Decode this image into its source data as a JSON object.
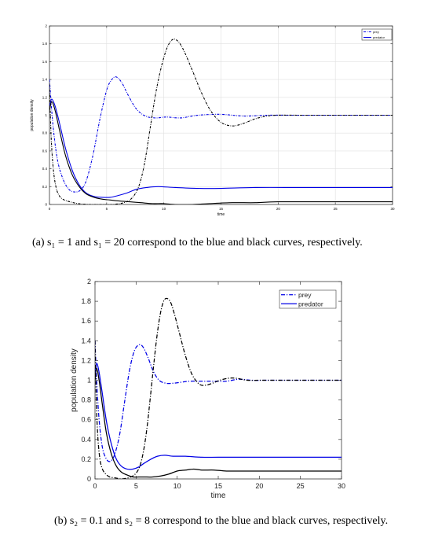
{
  "figures": {
    "a": {
      "caption": "(a) s₁ = 1 and s₁ = 20 correspond to the blue and black curves, respectively."
    },
    "b": {
      "caption": "(b) s₂ = 0.1 and s₂ = 8 correspond to the blue and black curves, respectively."
    }
  },
  "colors": {
    "blue": "#0000e6",
    "black": "#000000",
    "grid": "#e0e0e0",
    "axes": "#3a3a3a"
  },
  "chart_data": [
    {
      "type": "line",
      "xlabel": "time",
      "ylabel": "population density",
      "xlim": [
        0,
        30
      ],
      "ylim": [
        0,
        2
      ],
      "xticks": [
        "0",
        "5",
        "10",
        "15",
        "20",
        "25",
        "30"
      ],
      "yticks": [
        "0",
        "0.2",
        "0.4",
        "0.6",
        "0.8",
        "1",
        "1.2",
        "1.4",
        "1.6",
        "1.8",
        "2"
      ],
      "grid": true,
      "legend_position": "top-right",
      "legend": [
        "prey",
        "predator"
      ],
      "series": [
        {
          "name": "prey",
          "style": "dashdot",
          "color": "#0000e6",
          "x": [
            0,
            0.3,
            0.7,
            1.2,
            1.7,
            2.2,
            2.7,
            3.2,
            3.8,
            4.4,
            5.0,
            5.4,
            5.8,
            6.3,
            6.9,
            7.6,
            8.4,
            9.3,
            10.2,
            11.5,
            13,
            15,
            17,
            19,
            21,
            24,
            27,
            30
          ],
          "y": [
            1.4,
            0.9,
            0.5,
            0.28,
            0.17,
            0.14,
            0.16,
            0.26,
            0.55,
            0.95,
            1.28,
            1.39,
            1.43,
            1.37,
            1.22,
            1.07,
            0.99,
            0.97,
            0.98,
            0.97,
            1.0,
            1.01,
            0.99,
            1.0,
            1.0,
            1.0,
            1.0,
            1.0
          ]
        },
        {
          "name": "predator",
          "style": "solid",
          "color": "#0000e6",
          "x": [
            0,
            0.2,
            0.5,
            0.9,
            1.4,
            2.0,
            2.6,
            3.2,
            3.9,
            4.6,
            5.3,
            6.0,
            6.8,
            7.6,
            8.5,
            9.5,
            11,
            13,
            15,
            18,
            22,
            26,
            30
          ],
          "y": [
            1.1,
            1.18,
            1.1,
            0.9,
            0.63,
            0.38,
            0.22,
            0.13,
            0.09,
            0.08,
            0.08,
            0.1,
            0.13,
            0.17,
            0.19,
            0.2,
            0.19,
            0.18,
            0.18,
            0.19,
            0.19,
            0.19,
            0.19
          ]
        },
        {
          "name": "prey",
          "style": "dashdot",
          "color": "#000000",
          "x": [
            0,
            0.15,
            0.35,
            0.6,
            0.9,
            1.3,
            1.8,
            2.5,
            3.5,
            4.5,
            5.5,
            6.5,
            7.2,
            7.8,
            8.3,
            8.8,
            9.3,
            9.8,
            10.3,
            10.8,
            11.3,
            11.8,
            12.5,
            13.3,
            14.1,
            15,
            16,
            17,
            18,
            19,
            20,
            22,
            25,
            30
          ],
          "y": [
            1.35,
            0.75,
            0.38,
            0.18,
            0.09,
            0.05,
            0.03,
            0.01,
            0.0,
            0.0,
            0.0,
            0.02,
            0.07,
            0.2,
            0.45,
            0.85,
            1.25,
            1.55,
            1.76,
            1.85,
            1.82,
            1.71,
            1.5,
            1.25,
            1.05,
            0.92,
            0.88,
            0.91,
            0.96,
            0.99,
            1.0,
            1.0,
            1.0,
            1.0
          ]
        },
        {
          "name": "predator",
          "style": "solid",
          "color": "#000000",
          "x": [
            0,
            0.2,
            0.5,
            0.9,
            1.4,
            2.0,
            2.6,
            3.2,
            3.9,
            4.6,
            5.3,
            6.0,
            7,
            8,
            9,
            10,
            11,
            12.5,
            14,
            16,
            18,
            20,
            25,
            30
          ],
          "y": [
            1.05,
            1.15,
            1.05,
            0.82,
            0.55,
            0.33,
            0.2,
            0.12,
            0.08,
            0.06,
            0.05,
            0.04,
            0.03,
            0.02,
            0.01,
            0.01,
            0.0,
            0.0,
            0.01,
            0.02,
            0.02,
            0.03,
            0.03,
            0.03
          ]
        }
      ]
    },
    {
      "type": "line",
      "xlabel": "time",
      "ylabel": "population density",
      "xlim": [
        0,
        30
      ],
      "ylim": [
        0,
        2
      ],
      "xticks": [
        "0",
        "5",
        "10",
        "15",
        "20",
        "25",
        "30"
      ],
      "yticks": [
        "0",
        "0.2",
        "0.4",
        "0.6",
        "0.8",
        "1",
        "1.2",
        "1.4",
        "1.6",
        "1.8",
        "2"
      ],
      "grid": false,
      "legend_position": "top-right",
      "legend": [
        "prey",
        "predator"
      ],
      "series": [
        {
          "name": "prey",
          "style": "dashdot",
          "color": "#0000e6",
          "x": [
            0,
            0.2,
            0.5,
            0.9,
            1.4,
            1.9,
            2.4,
            3.0,
            3.6,
            4.2,
            4.8,
            5.4,
            5.9,
            6.5,
            7.1,
            7.8,
            8.6,
            9.5,
            10.5,
            11.5,
            13,
            14.5,
            16,
            17.5,
            19,
            21,
            24,
            27,
            30
          ],
          "y": [
            1.4,
            1.0,
            0.6,
            0.32,
            0.2,
            0.18,
            0.25,
            0.45,
            0.78,
            1.1,
            1.3,
            1.36,
            1.33,
            1.22,
            1.09,
            1.0,
            0.97,
            0.97,
            0.98,
            0.99,
            0.99,
            0.99,
            0.99,
            1.01,
            1.0,
            1.0,
            1.0,
            1.0,
            1.0
          ]
        },
        {
          "name": "predator",
          "style": "solid",
          "color": "#0000e6",
          "x": [
            0,
            0.2,
            0.5,
            0.9,
            1.4,
            2.0,
            2.6,
            3.2,
            3.9,
            4.6,
            5.3,
            6.0,
            6.8,
            7.6,
            8.5,
            9.5,
            11,
            13,
            15,
            18,
            22,
            26,
            30
          ],
          "y": [
            1.05,
            1.17,
            1.08,
            0.86,
            0.58,
            0.35,
            0.2,
            0.13,
            0.1,
            0.1,
            0.12,
            0.16,
            0.2,
            0.23,
            0.24,
            0.23,
            0.23,
            0.22,
            0.22,
            0.22,
            0.22,
            0.22,
            0.22
          ]
        },
        {
          "name": "prey",
          "style": "dashdot",
          "color": "#000000",
          "x": [
            0,
            0.15,
            0.35,
            0.6,
            0.9,
            1.3,
            1.8,
            2.5,
            3.2,
            4.0,
            4.6,
            5.1,
            5.5,
            5.9,
            6.3,
            6.7,
            7.1,
            7.5,
            7.9,
            8.3,
            8.7,
            9.2,
            9.7,
            10.3,
            11.0,
            11.8,
            12.7,
            13.5,
            14.3,
            15.2,
            16.2,
            17.2,
            18.5,
            20,
            23,
            26,
            30
          ],
          "y": [
            1.4,
            0.8,
            0.42,
            0.2,
            0.1,
            0.05,
            0.02,
            0.01,
            0.0,
            0.01,
            0.03,
            0.07,
            0.14,
            0.28,
            0.5,
            0.8,
            1.12,
            1.42,
            1.65,
            1.79,
            1.83,
            1.79,
            1.66,
            1.47,
            1.25,
            1.06,
            0.96,
            0.95,
            0.97,
            1.0,
            1.02,
            1.02,
            1.0,
            1.0,
            1.0,
            1.0,
            1.0
          ]
        },
        {
          "name": "predator",
          "style": "solid",
          "color": "#000000",
          "x": [
            0,
            0.2,
            0.5,
            0.9,
            1.4,
            2.0,
            2.6,
            3.2,
            3.9,
            4.6,
            5.3,
            6.0,
            7.0,
            8.0,
            9.0,
            10.0,
            11.0,
            12.0,
            13.0,
            14.5,
            16,
            18,
            20,
            24,
            28,
            30
          ],
          "y": [
            1.0,
            1.12,
            1.0,
            0.75,
            0.46,
            0.25,
            0.13,
            0.07,
            0.04,
            0.02,
            0.02,
            0.02,
            0.02,
            0.03,
            0.05,
            0.08,
            0.09,
            0.1,
            0.09,
            0.09,
            0.08,
            0.08,
            0.08,
            0.08,
            0.08,
            0.08
          ]
        }
      ]
    }
  ]
}
